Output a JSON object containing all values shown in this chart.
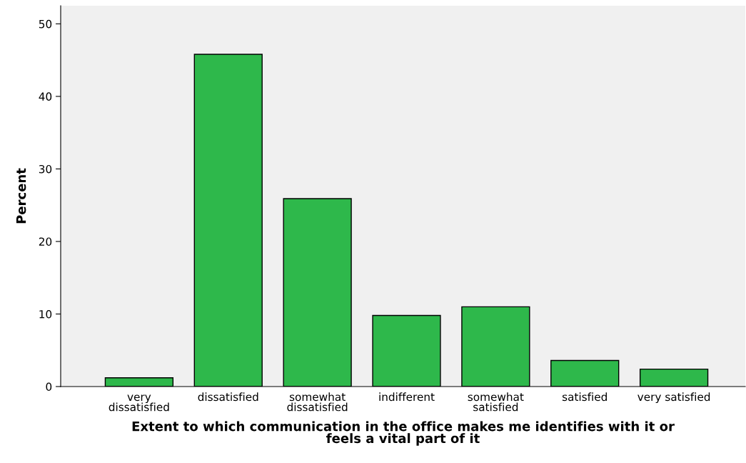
{
  "chart_data": {
    "type": "bar",
    "xlabel": "Extent to which communication in the office makes me identifies with it or\nfeels a vital part of it",
    "ylabel": "Percent",
    "categories": [
      "very\ndissatisfied",
      "dissatisfied",
      "somewhat\ndissatisfied",
      "indifferent",
      "somewhat\nsatisfied",
      "satisfied",
      "very satisfied"
    ],
    "values": [
      1.2,
      45.8,
      25.9,
      9.8,
      11.0,
      3.6,
      2.4
    ],
    "color": "#2eb84b",
    "ylim": [
      0,
      52.5
    ],
    "yticks": [
      0,
      10,
      20,
      30,
      40,
      50
    ],
    "grid": false,
    "legend": false
  }
}
